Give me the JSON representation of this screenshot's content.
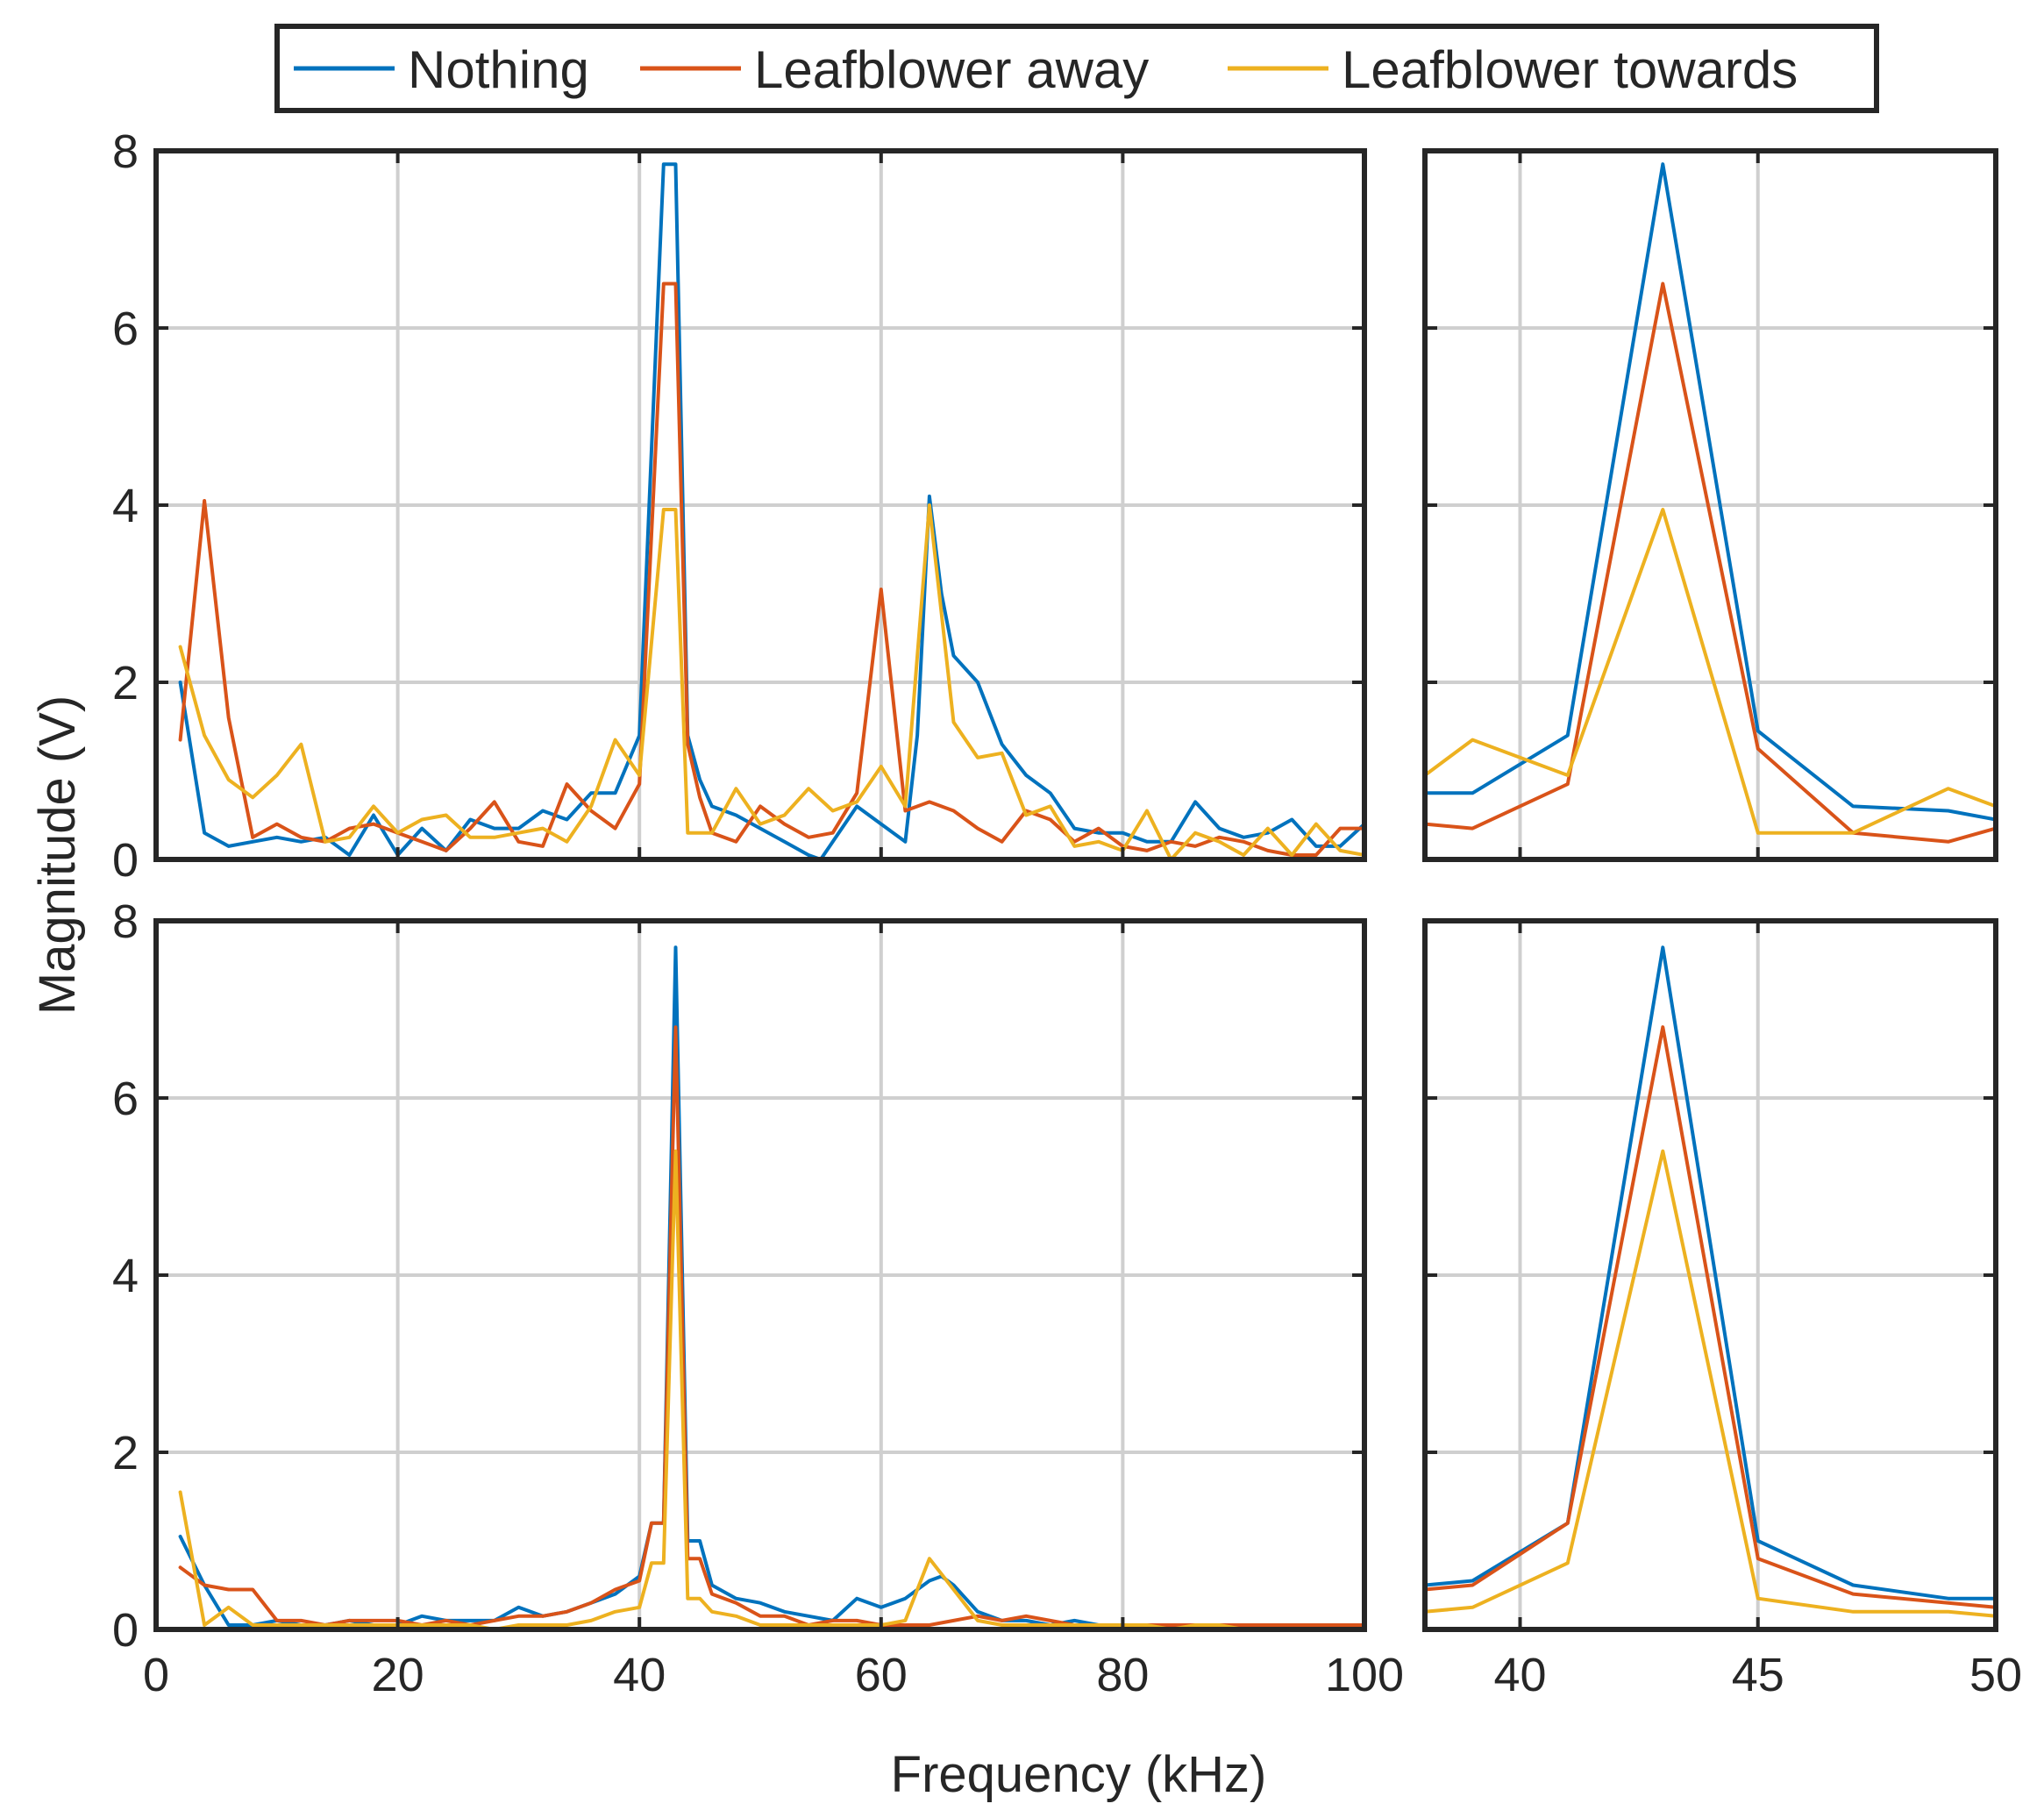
{
  "legend": {
    "placement": "top-center",
    "entries": [
      "Nothing",
      "Leafblower away",
      "Leafblower towards"
    ]
  },
  "xlabel": "Frequency (kHz)",
  "ylabel": "Magnitude (V)",
  "colors": {
    "Nothing": "#0072BD",
    "Leafblower away": "#D95319",
    "Leafblower towards": "#EDB120"
  },
  "chart_data": [
    {
      "type": "line",
      "id": "top-full",
      "xlim": [
        0,
        100
      ],
      "ylim": [
        0,
        8
      ],
      "xticks": [
        0,
        20,
        40,
        60,
        80,
        100
      ],
      "yticks": [
        0,
        2,
        4,
        6,
        8
      ],
      "grid": true,
      "series": [
        {
          "name": "Nothing",
          "x": [
            2,
            4,
            6,
            8,
            10,
            12,
            14,
            16,
            18,
            20,
            22,
            24,
            26,
            28,
            30,
            32,
            34,
            36,
            38,
            40,
            42,
            43,
            44,
            45,
            46,
            48,
            50,
            52,
            54,
            55,
            56,
            58,
            60,
            62,
            63,
            64,
            65,
            66,
            68,
            70,
            72,
            74,
            76,
            78,
            80,
            82,
            84,
            86,
            88,
            90,
            92,
            94,
            96,
            98,
            100
          ],
          "values": [
            2.0,
            0.3,
            0.15,
            0.2,
            0.25,
            0.2,
            0.25,
            0.05,
            0.5,
            0.05,
            0.35,
            0.1,
            0.45,
            0.35,
            0.35,
            0.55,
            0.45,
            0.75,
            0.75,
            1.4,
            7.85,
            7.85,
            1.4,
            0.9,
            0.6,
            0.5,
            0.35,
            0.2,
            0.05,
            0.0,
            0.2,
            0.6,
            0.4,
            0.2,
            1.4,
            4.1,
            3.0,
            2.3,
            2.0,
            1.3,
            0.95,
            0.75,
            0.35,
            0.3,
            0.3,
            0.2,
            0.2,
            0.65,
            0.35,
            0.25,
            0.3,
            0.45,
            0.15,
            0.15,
            0.4
          ]
        },
        {
          "name": "Leafblower away",
          "x": [
            2,
            4,
            6,
            8,
            10,
            12,
            14,
            16,
            18,
            20,
            22,
            24,
            26,
            28,
            30,
            32,
            34,
            36,
            38,
            40,
            42,
            43,
            44,
            45,
            46,
            48,
            50,
            52,
            54,
            56,
            58,
            60,
            62,
            64,
            66,
            68,
            70,
            72,
            74,
            76,
            78,
            80,
            82,
            84,
            86,
            88,
            90,
            92,
            94,
            96,
            98,
            100
          ],
          "values": [
            1.35,
            4.05,
            1.6,
            0.25,
            0.4,
            0.25,
            0.2,
            0.35,
            0.4,
            0.3,
            0.2,
            0.1,
            0.35,
            0.65,
            0.2,
            0.15,
            0.85,
            0.55,
            0.35,
            0.85,
            6.5,
            6.5,
            1.3,
            0.7,
            0.3,
            0.2,
            0.6,
            0.4,
            0.25,
            0.3,
            0.75,
            3.05,
            0.55,
            0.65,
            0.55,
            0.35,
            0.2,
            0.55,
            0.45,
            0.2,
            0.35,
            0.15,
            0.1,
            0.2,
            0.15,
            0.25,
            0.2,
            0.1,
            0.05,
            0.05,
            0.35,
            0.35
          ]
        },
        {
          "name": "Leafblower towards",
          "x": [
            2,
            4,
            6,
            8,
            10,
            12,
            14,
            16,
            18,
            20,
            22,
            24,
            26,
            28,
            30,
            32,
            34,
            36,
            38,
            40,
            42,
            43,
            44,
            45,
            46,
            48,
            50,
            52,
            54,
            56,
            58,
            60,
            62,
            64,
            66,
            68,
            70,
            72,
            74,
            76,
            78,
            80,
            82,
            84,
            86,
            88,
            90,
            92,
            94,
            96,
            98,
            100
          ],
          "values": [
            2.4,
            1.4,
            0.9,
            0.7,
            0.95,
            1.3,
            0.2,
            0.25,
            0.6,
            0.3,
            0.45,
            0.5,
            0.25,
            0.25,
            0.3,
            0.35,
            0.2,
            0.6,
            1.35,
            0.95,
            3.95,
            3.95,
            0.3,
            0.3,
            0.3,
            0.8,
            0.4,
            0.5,
            0.8,
            0.55,
            0.65,
            1.05,
            0.6,
            4.0,
            1.55,
            1.15,
            1.2,
            0.5,
            0.6,
            0.15,
            0.2,
            0.1,
            0.55,
            0.0,
            0.3,
            0.2,
            0.05,
            0.35,
            0.05,
            0.4,
            0.1,
            0.05
          ]
        }
      ]
    },
    {
      "type": "line",
      "id": "top-zoom",
      "xlim": [
        38,
        50
      ],
      "ylim": [
        0,
        8
      ],
      "xticks": [
        40,
        45,
        50
      ],
      "yticks": [
        0,
        2,
        4,
        6,
        8
      ],
      "grid": true,
      "series": [
        {
          "name": "Nothing",
          "x": [
            38,
            39,
            41,
            43,
            45,
            47,
            49,
            50
          ],
          "values": [
            0.75,
            0.75,
            1.4,
            7.85,
            1.45,
            0.6,
            0.55,
            0.45
          ]
        },
        {
          "name": "Leafblower away",
          "x": [
            38,
            39,
            41,
            43,
            45,
            47,
            49,
            50
          ],
          "values": [
            0.4,
            0.35,
            0.85,
            6.5,
            1.25,
            0.3,
            0.2,
            0.35
          ]
        },
        {
          "name": "Leafblower towards",
          "x": [
            38,
            39,
            41,
            43,
            45,
            47,
            49,
            50
          ],
          "values": [
            0.95,
            1.35,
            0.95,
            3.95,
            0.3,
            0.3,
            0.8,
            0.6
          ]
        }
      ]
    },
    {
      "type": "line",
      "id": "bottom-full",
      "xlim": [
        0,
        100
      ],
      "ylim": [
        0,
        8
      ],
      "xticks": [
        0,
        20,
        40,
        60,
        80,
        100
      ],
      "yticks": [
        0,
        2,
        4,
        6,
        8
      ],
      "grid": true,
      "series": [
        {
          "name": "Nothing",
          "x": [
            2,
            4,
            6,
            8,
            10,
            12,
            14,
            16,
            18,
            20,
            22,
            24,
            26,
            28,
            30,
            32,
            34,
            36,
            38,
            40,
            41,
            42,
            43,
            44,
            45,
            46,
            48,
            50,
            52,
            54,
            56,
            58,
            60,
            62,
            64,
            65,
            66,
            68,
            70,
            72,
            74,
            76,
            78,
            80,
            82,
            84,
            86,
            88,
            90,
            92,
            94,
            96,
            98,
            100
          ],
          "values": [
            1.05,
            0.5,
            0.05,
            0.05,
            0.1,
            0.05,
            0.05,
            0.1,
            0.05,
            0.05,
            0.15,
            0.1,
            0.1,
            0.1,
            0.25,
            0.15,
            0.2,
            0.3,
            0.4,
            0.6,
            1.2,
            1.2,
            7.7,
            1.0,
            1.0,
            0.5,
            0.35,
            0.3,
            0.2,
            0.15,
            0.1,
            0.35,
            0.25,
            0.35,
            0.55,
            0.6,
            0.5,
            0.2,
            0.1,
            0.1,
            0.05,
            0.1,
            0.05,
            0.05,
            0.05,
            0.05,
            0.05,
            0.05,
            0.05,
            0.05,
            0.05,
            0.05,
            0.05,
            0.05
          ]
        },
        {
          "name": "Leafblower away",
          "x": [
            2,
            4,
            6,
            8,
            10,
            12,
            14,
            16,
            18,
            20,
            22,
            24,
            26,
            28,
            30,
            32,
            34,
            36,
            38,
            40,
            41,
            42,
            43,
            44,
            45,
            46,
            48,
            50,
            52,
            54,
            56,
            58,
            60,
            62,
            64,
            66,
            68,
            70,
            72,
            74,
            76,
            78,
            80,
            82,
            84,
            86,
            88,
            90,
            92,
            94,
            96,
            98,
            100
          ],
          "values": [
            0.7,
            0.5,
            0.45,
            0.45,
            0.1,
            0.1,
            0.05,
            0.1,
            0.1,
            0.1,
            0.05,
            0.1,
            0.05,
            0.1,
            0.15,
            0.15,
            0.2,
            0.3,
            0.45,
            0.55,
            1.2,
            1.2,
            6.8,
            0.8,
            0.8,
            0.4,
            0.3,
            0.15,
            0.15,
            0.05,
            0.1,
            0.1,
            0.05,
            0.05,
            0.05,
            0.1,
            0.15,
            0.1,
            0.15,
            0.1,
            0.05,
            0.05,
            0.05,
            0.05,
            0.05,
            0.05,
            0.05,
            0.05,
            0.05,
            0.05,
            0.05,
            0.05,
            0.05
          ]
        },
        {
          "name": "Leafblower towards",
          "x": [
            2,
            4,
            6,
            8,
            10,
            12,
            14,
            16,
            18,
            20,
            22,
            24,
            26,
            28,
            30,
            32,
            34,
            36,
            38,
            40,
            41,
            42,
            43,
            44,
            45,
            46,
            48,
            50,
            52,
            54,
            56,
            58,
            60,
            62,
            64,
            66,
            68,
            70,
            72,
            74,
            76,
            78,
            80,
            82,
            84,
            86,
            88,
            90,
            92,
            94,
            96,
            98,
            100
          ],
          "values": [
            1.55,
            0.05,
            0.25,
            0.05,
            0.05,
            0.05,
            0.05,
            0.05,
            0.05,
            0.05,
            0.05,
            0.05,
            0.05,
            0.0,
            0.05,
            0.05,
            0.05,
            0.1,
            0.2,
            0.25,
            0.75,
            0.75,
            5.4,
            0.35,
            0.35,
            0.2,
            0.15,
            0.05,
            0.05,
            0.05,
            0.05,
            0.05,
            0.05,
            0.1,
            0.8,
            0.45,
            0.1,
            0.05,
            0.05,
            0.05,
            0.05,
            0.05,
            0.05,
            0.05,
            0.0,
            0.05,
            0.05,
            0.0,
            0.0,
            0.0,
            0.0,
            0.0,
            0.0
          ]
        }
      ]
    },
    {
      "type": "line",
      "id": "bottom-zoom",
      "xlim": [
        38,
        50
      ],
      "ylim": [
        0,
        8
      ],
      "xticks": [
        40,
        45,
        50
      ],
      "yticks": [
        0,
        2,
        4,
        6,
        8
      ],
      "grid": true,
      "series": [
        {
          "name": "Nothing",
          "x": [
            38,
            39,
            41,
            43,
            45,
            47,
            49,
            50
          ],
          "values": [
            0.5,
            0.55,
            1.2,
            7.7,
            1.0,
            0.5,
            0.35,
            0.35
          ]
        },
        {
          "name": "Leafblower away",
          "x": [
            38,
            39,
            41,
            43,
            45,
            47,
            49,
            50
          ],
          "values": [
            0.45,
            0.5,
            1.2,
            6.8,
            0.8,
            0.4,
            0.3,
            0.25
          ]
        },
        {
          "name": "Leafblower towards",
          "x": [
            38,
            39,
            41,
            43,
            45,
            47,
            49,
            50
          ],
          "values": [
            0.2,
            0.25,
            0.75,
            5.4,
            0.35,
            0.2,
            0.2,
            0.15
          ]
        }
      ]
    }
  ]
}
